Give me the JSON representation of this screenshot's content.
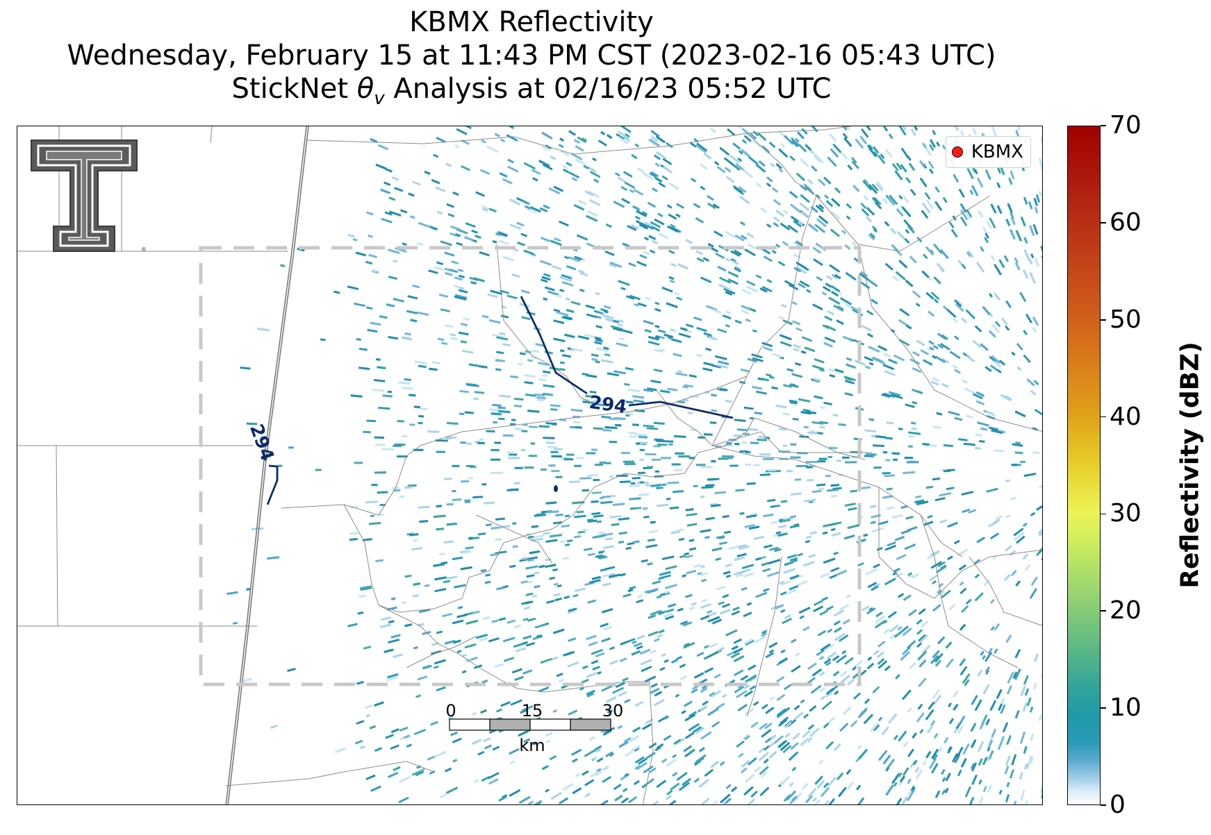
{
  "title": {
    "line1": "KBMX Reflectivity",
    "line2": "Wednesday, February 15 at 11:43 PM CST (2023-02-16 05:43 UTC)",
    "line3_pre": "StickNet ",
    "line3_symbol": "θ",
    "line3_sub": "v",
    "line3_post": " Analysis at 02/16/23 05:52 UTC"
  },
  "legend": {
    "marker_label": "KBMX",
    "marker_color": "#ff1a1a"
  },
  "contours": {
    "label": "294",
    "color": "#0b2a6e"
  },
  "scale_bar": {
    "ticks": [
      "0",
      "15",
      "30"
    ],
    "unit": "km"
  },
  "colorbar": {
    "label": "Reflectivity (dBZ)",
    "ticks": [
      "0",
      "10",
      "20",
      "30",
      "40",
      "50",
      "60",
      "70"
    ],
    "min": 0,
    "max": 70
  },
  "analysis_box": {
    "color": "#c8c8c8",
    "style": "dashed"
  },
  "logo": {
    "text": "T"
  }
}
